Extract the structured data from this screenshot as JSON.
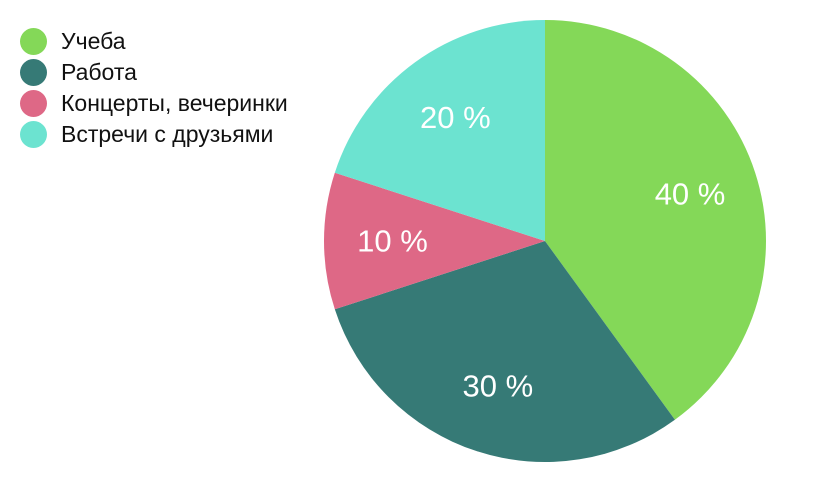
{
  "chart_data": {
    "type": "pie",
    "title": "",
    "categories": [
      "Учеба",
      "Работа",
      "Концерты, вечеринки",
      "Встречи с друзьями"
    ],
    "values": [
      40,
      30,
      10,
      20
    ],
    "value_labels": [
      "40 %",
      "30 %",
      "10 %",
      "20 %"
    ],
    "colors": [
      "#84D858",
      "#367A76",
      "#DE6886",
      "#6CE3D0"
    ],
    "start": "12 o'clock",
    "direction": "clockwise",
    "legend_position": "top-left"
  }
}
